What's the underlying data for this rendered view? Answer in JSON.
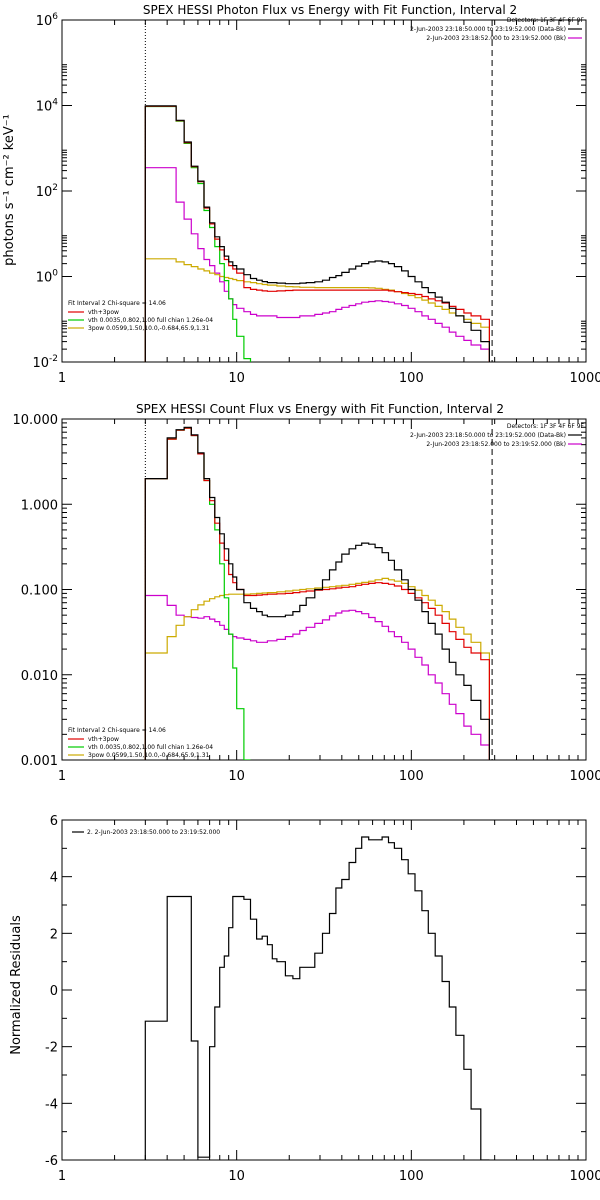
{
  "chart_data": [
    {
      "type": "line",
      "id": "photon",
      "title": "SPEX HESSI Photon Flux vs Energy with Fit Function, Interval 2",
      "ylabel": "photons s⁻¹ cm⁻² keV⁻¹",
      "xscale": "log",
      "yscale": "log",
      "xlim": [
        1,
        1000
      ],
      "ylim": [
        0.01,
        1000000
      ],
      "x_ticks": [
        "1",
        "10",
        "100",
        "1000"
      ],
      "y_ticks": [
        {
          "value": 0.01,
          "base": "10",
          "exp": "-2"
        },
        {
          "value": 1,
          "base": "10",
          "exp": "0"
        },
        {
          "value": 100,
          "base": "10",
          "exp": "2"
        },
        {
          "value": 10000,
          "base": "10",
          "exp": "4"
        },
        {
          "value": 1000000,
          "base": "10",
          "exp": "6"
        }
      ],
      "vlines": [
        {
          "x": 3.0,
          "style": "dotted"
        },
        {
          "x": 290,
          "style": "dashed"
        }
      ],
      "legend_top": {
        "placement": "top-right",
        "header": "Detectors: 1F 3F 4F 6F 9F",
        "items": [
          {
            "label": "2-Jun-2003 23:18:50.000 to 23:19:52.000 (Data-Bk)",
            "color": "#000000"
          },
          {
            "label": "2-Jun-2003 23:18:52.000 to 23:19:52.000 (Bk)",
            "color": "#cc00cc"
          }
        ]
      },
      "legend_bottom": {
        "placement": "bottom-left",
        "header": "Fit Interval 2   Chi-square = 14.06",
        "items": [
          {
            "label": "vth+3pow",
            "color": "#e00000"
          },
          {
            "label": "vth 0.0035,0.802,1.00  full chian 1.26e-04",
            "color": "#00cc00"
          },
          {
            "label": "3pow 0.0599,1.50,10.0,-0.684,65.9,1.31",
            "color": "#ccaa00"
          }
        ]
      },
      "x_edges": [
        3.0,
        3.5,
        4.0,
        4.5,
        5.0,
        5.5,
        6.0,
        6.5,
        7.0,
        7.5,
        8.0,
        8.5,
        9.0,
        9.5,
        10.0,
        11.0,
        12.0,
        13.0,
        14.0,
        15.0,
        17.0,
        19.0,
        21.0,
        23.0,
        25.0,
        28.0,
        31.0,
        34.0,
        37.0,
        40.0,
        44.0,
        48.0,
        52.0,
        57.0,
        62.0,
        68.0,
        74.0,
        80.0,
        88.0,
        96.0,
        105.0,
        115.0,
        125.0,
        137.0,
        150.0,
        165.0,
        180.0,
        200.0,
        220.0,
        250.0,
        280.0
      ],
      "series": [
        {
          "id": "data",
          "color": "#000000",
          "values": [
            9800,
            9800,
            9800,
            4500,
            1400,
            380,
            170,
            42,
            18,
            8.5,
            5.0,
            3.0,
            2.2,
            1.8,
            1.5,
            1.1,
            0.9,
            0.82,
            0.76,
            0.72,
            0.7,
            0.68,
            0.68,
            0.7,
            0.72,
            0.75,
            0.82,
            0.95,
            1.05,
            1.25,
            1.5,
            1.75,
            2.0,
            2.2,
            2.3,
            2.2,
            2.0,
            1.7,
            1.35,
            1.0,
            0.75,
            0.55,
            0.42,
            0.33,
            0.25,
            0.18,
            0.12,
            0.085,
            0.055,
            0.03
          ]
        },
        {
          "id": "total",
          "color": "#e00000",
          "values": [
            9600,
            9600,
            9600,
            4400,
            1350,
            370,
            165,
            40,
            17,
            7.5,
            4.2,
            2.5,
            1.8,
            1.5,
            1.2,
            0.55,
            0.5,
            0.48,
            0.46,
            0.45,
            0.46,
            0.47,
            0.48,
            0.48,
            0.48,
            0.48,
            0.48,
            0.48,
            0.48,
            0.48,
            0.48,
            0.48,
            0.48,
            0.48,
            0.48,
            0.48,
            0.46,
            0.44,
            0.42,
            0.4,
            0.38,
            0.34,
            0.3,
            0.27,
            0.24,
            0.2,
            0.17,
            0.14,
            0.12,
            0.1
          ]
        },
        {
          "id": "thermal",
          "color": "#00cc00",
          "values": [
            9500,
            9500,
            9500,
            4300,
            1300,
            350,
            150,
            35,
            14,
            5.0,
            2.0,
            0.8,
            0.3,
            0.1,
            0.04,
            0.012
          ]
        },
        {
          "id": "background",
          "color": "#cc00cc",
          "values": [
            350,
            350,
            350,
            55,
            22,
            10,
            4.5,
            2.5,
            1.8,
            1.2,
            0.75,
            0.45,
            0.3,
            0.22,
            0.18,
            0.15,
            0.13,
            0.12,
            0.12,
            0.12,
            0.11,
            0.11,
            0.11,
            0.12,
            0.12,
            0.13,
            0.14,
            0.15,
            0.17,
            0.19,
            0.21,
            0.23,
            0.25,
            0.26,
            0.27,
            0.26,
            0.25,
            0.23,
            0.21,
            0.18,
            0.15,
            0.12,
            0.1,
            0.08,
            0.065,
            0.05,
            0.04,
            0.032,
            0.025,
            0.02
          ]
        },
        {
          "id": "powerlaw",
          "color": "#ccaa00",
          "values": [
            2.6,
            2.6,
            2.6,
            2.2,
            1.9,
            1.7,
            1.5,
            1.35,
            1.2,
            1.1,
            1.0,
            0.95,
            0.9,
            0.85,
            0.8,
            0.75,
            0.72,
            0.68,
            0.65,
            0.63,
            0.6,
            0.58,
            0.57,
            0.56,
            0.56,
            0.55,
            0.55,
            0.55,
            0.55,
            0.55,
            0.55,
            0.55,
            0.55,
            0.54,
            0.53,
            0.5,
            0.48,
            0.44,
            0.4,
            0.36,
            0.32,
            0.28,
            0.24,
            0.2,
            0.17,
            0.14,
            0.12,
            0.1,
            0.08,
            0.065
          ]
        }
      ]
    },
    {
      "type": "line",
      "id": "count",
      "title": "SPEX HESSI Count Flux vs Energy with Fit Function, Interval 2",
      "ylabel": "",
      "xscale": "log",
      "yscale": "log",
      "xlim": [
        1,
        1000
      ],
      "ylim": [
        0.001,
        10
      ],
      "x_ticks": [
        "1",
        "10",
        "100",
        "1000"
      ],
      "y_ticks": [
        {
          "value": 0.001,
          "label": "0.001"
        },
        {
          "value": 0.01,
          "label": "0.010"
        },
        {
          "value": 0.1,
          "label": "0.100"
        },
        {
          "value": 1,
          "label": "1.000"
        },
        {
          "value": 10,
          "label": "10.000"
        }
      ],
      "vlines": [
        {
          "x": 3.0,
          "style": "dotted"
        },
        {
          "x": 290,
          "style": "dashed"
        }
      ],
      "legend_top": {
        "placement": "top-right",
        "header": "Detectors: 1F 3F 4F 6F 9F",
        "items": [
          {
            "label": "2-Jun-2003 23:18:50.000 to 23:19:52.000 (Data-Bk)",
            "color": "#000000"
          },
          {
            "label": "2-Jun-2003 23:18:52.000 to 23:19:52.000 (Bk)",
            "color": "#cc00cc"
          }
        ]
      },
      "legend_bottom": {
        "placement": "bottom-left",
        "header": "Fit Interval 2   Chi-square = 14.06",
        "items": [
          {
            "label": "vth+3pow",
            "color": "#e00000"
          },
          {
            "label": "vth 0.0035,0.802,1.00  full chian 1.26e-04",
            "color": "#00cc00"
          },
          {
            "label": "3pow 0.0599,1.50,10.0,-0.684,65.9,1.31",
            "color": "#ccaa00"
          }
        ]
      },
      "x_edges": [
        3.0,
        3.5,
        4.0,
        4.5,
        5.0,
        5.5,
        6.0,
        6.5,
        7.0,
        7.5,
        8.0,
        8.5,
        9.0,
        9.5,
        10.0,
        11.0,
        12.0,
        13.0,
        14.0,
        15.0,
        17.0,
        19.0,
        21.0,
        23.0,
        25.0,
        28.0,
        31.0,
        34.0,
        37.0,
        40.0,
        44.0,
        48.0,
        52.0,
        57.0,
        62.0,
        68.0,
        74.0,
        80.0,
        88.0,
        96.0,
        105.0,
        115.0,
        125.0,
        137.0,
        150.0,
        165.0,
        180.0,
        200.0,
        220.0,
        250.0,
        280.0
      ],
      "series": [
        {
          "id": "data",
          "color": "#000000",
          "values": [
            2.0,
            2.0,
            6.0,
            7.5,
            8.0,
            6.5,
            4.0,
            2.0,
            1.2,
            0.7,
            0.45,
            0.3,
            0.2,
            0.14,
            0.1,
            0.07,
            0.06,
            0.055,
            0.05,
            0.048,
            0.048,
            0.05,
            0.055,
            0.065,
            0.08,
            0.1,
            0.13,
            0.17,
            0.21,
            0.26,
            0.3,
            0.33,
            0.35,
            0.34,
            0.31,
            0.27,
            0.22,
            0.17,
            0.13,
            0.1,
            0.075,
            0.055,
            0.04,
            0.03,
            0.02,
            0.014,
            0.01,
            0.0075,
            0.005,
            0.003
          ]
        },
        {
          "id": "total",
          "color": "#e00000",
          "values": [
            2.0,
            2.0,
            5.8,
            7.4,
            7.8,
            6.4,
            3.9,
            1.9,
            1.1,
            0.6,
            0.35,
            0.22,
            0.15,
            0.12,
            0.1,
            0.085,
            0.085,
            0.086,
            0.087,
            0.088,
            0.089,
            0.09,
            0.092,
            0.094,
            0.096,
            0.098,
            0.1,
            0.102,
            0.104,
            0.106,
            0.108,
            0.112,
            0.115,
            0.118,
            0.12,
            0.118,
            0.115,
            0.11,
            0.1,
            0.09,
            0.08,
            0.07,
            0.06,
            0.05,
            0.04,
            0.032,
            0.026,
            0.021,
            0.018,
            0.015
          ]
        },
        {
          "id": "thermal",
          "color": "#00cc00",
          "values": [
            2.0,
            2.0,
            5.8,
            7.4,
            7.8,
            6.4,
            3.9,
            1.9,
            1.0,
            0.5,
            0.2,
            0.08,
            0.03,
            0.012,
            0.004,
            0.0008
          ]
        },
        {
          "id": "background",
          "color": "#cc00cc",
          "values": [
            0.085,
            0.085,
            0.065,
            0.05,
            0.048,
            0.047,
            0.046,
            0.048,
            0.045,
            0.042,
            0.038,
            0.034,
            0.03,
            0.028,
            0.027,
            0.026,
            0.025,
            0.024,
            0.024,
            0.025,
            0.026,
            0.028,
            0.03,
            0.033,
            0.036,
            0.04,
            0.044,
            0.049,
            0.053,
            0.056,
            0.057,
            0.055,
            0.052,
            0.047,
            0.042,
            0.037,
            0.032,
            0.028,
            0.024,
            0.02,
            0.016,
            0.013,
            0.01,
            0.008,
            0.006,
            0.0045,
            0.0035,
            0.0025,
            0.002,
            0.0015
          ]
        },
        {
          "id": "powerlaw",
          "color": "#ccaa00",
          "values": [
            0.018,
            0.018,
            0.028,
            0.038,
            0.048,
            0.058,
            0.066,
            0.073,
            0.078,
            0.082,
            0.085,
            0.087,
            0.088,
            0.088,
            0.088,
            0.088,
            0.089,
            0.09,
            0.091,
            0.092,
            0.094,
            0.096,
            0.098,
            0.1,
            0.102,
            0.104,
            0.106,
            0.108,
            0.11,
            0.112,
            0.115,
            0.118,
            0.121,
            0.125,
            0.13,
            0.135,
            0.13,
            0.125,
            0.118,
            0.108,
            0.098,
            0.085,
            0.075,
            0.065,
            0.055,
            0.045,
            0.036,
            0.03,
            0.024,
            0.018
          ]
        }
      ]
    },
    {
      "type": "line",
      "id": "residuals",
      "title": "",
      "ylabel": "Normalized Residuals",
      "xscale": "log",
      "yscale": "linear",
      "xlim": [
        1,
        1000
      ],
      "ylim": [
        -6,
        6
      ],
      "x_ticks": [
        "1",
        "10",
        "100",
        "1000"
      ],
      "y_ticks": [
        {
          "value": -6,
          "label": "-6"
        },
        {
          "value": -4,
          "label": "-4"
        },
        {
          "value": -2,
          "label": "-2"
        },
        {
          "value": 0,
          "label": "0"
        },
        {
          "value": 2,
          "label": "2"
        },
        {
          "value": 4,
          "label": "4"
        },
        {
          "value": 6,
          "label": "6"
        }
      ],
      "vlines": [],
      "legend_top": {
        "placement": "top-left",
        "header": "",
        "items": [
          {
            "label": "2.  2-Jun-2003 23:18:50.000 to 23:19:52.000",
            "color": "#000000"
          }
        ]
      },
      "x_edges": [
        3.0,
        4.0,
        4.5,
        5.0,
        5.5,
        6.0,
        6.5,
        7.0,
        7.5,
        8.0,
        8.5,
        9.0,
        9.5,
        10.0,
        11.0,
        12.0,
        13.0,
        14.0,
        15.0,
        16.0,
        17.0,
        19.0,
        21.0,
        23.0,
        25.0,
        28.0,
        31.0,
        34.0,
        37.0,
        40.0,
        44.0,
        48.0,
        52.0,
        57.0,
        62.0,
        68.0,
        74.0,
        80.0,
        88.0,
        96.0,
        105.0,
        115.0,
        125.0,
        137.0,
        150.0,
        165.0,
        180.0,
        200.0,
        220.0,
        250.0,
        280.0
      ],
      "series": [
        {
          "id": "residual",
          "color": "#000000",
          "values": [
            -1.1,
            3.3,
            3.3,
            3.3,
            -1.8,
            -5.9,
            -5.9,
            -2.0,
            -0.6,
            0.8,
            1.2,
            2.2,
            3.3,
            3.3,
            3.2,
            2.5,
            1.8,
            1.9,
            1.6,
            1.1,
            1.0,
            0.5,
            0.4,
            0.8,
            0.8,
            1.3,
            2.0,
            2.7,
            3.6,
            3.9,
            4.5,
            5.0,
            5.4,
            5.3,
            5.3,
            5.4,
            5.2,
            5.0,
            4.6,
            4.1,
            3.5,
            2.8,
            2.0,
            1.2,
            0.3,
            -0.6,
            -1.6,
            -2.8,
            -4.2,
            -6.0
          ]
        }
      ]
    }
  ]
}
